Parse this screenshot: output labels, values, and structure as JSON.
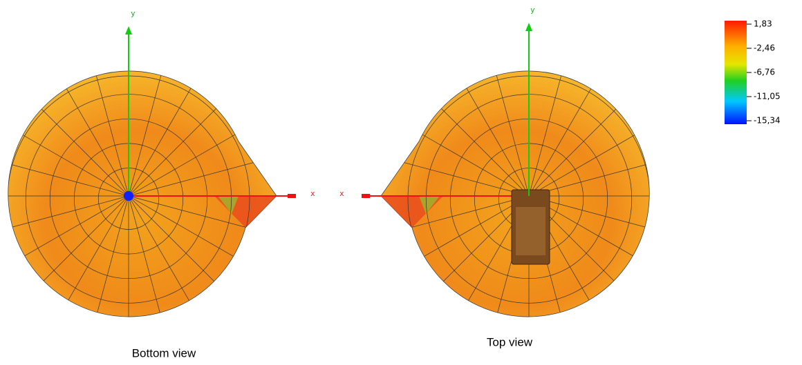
{
  "views": [
    {
      "caption": "Bottom view",
      "x_axis": "x",
      "y_axis": "y"
    },
    {
      "caption": "Top view",
      "x_axis": "x",
      "y_axis": "y"
    }
  ],
  "colorbar": {
    "ticks": [
      {
        "value": 1.83,
        "label": "1,83"
      },
      {
        "value": -2.46,
        "label": "-2,46"
      },
      {
        "value": -6.76,
        "label": "-6,76"
      },
      {
        "value": -11.05,
        "label": "-11,05"
      },
      {
        "value": -15.34,
        "label": "-15,34"
      }
    ]
  }
}
